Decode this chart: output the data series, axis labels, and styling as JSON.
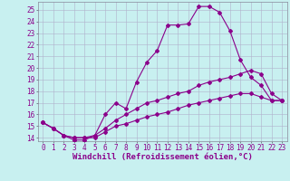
{
  "xlabel": "Windchill (Refroidissement éolien,°C)",
  "bg_color": "#c8f0f0",
  "line_color": "#8b008b",
  "grid_color": "#b0b0cc",
  "xlim": [
    -0.5,
    23.5
  ],
  "ylim": [
    13.7,
    25.7
  ],
  "yticks": [
    14,
    15,
    16,
    17,
    18,
    19,
    20,
    21,
    22,
    23,
    24,
    25
  ],
  "xticks": [
    0,
    1,
    2,
    3,
    4,
    5,
    6,
    7,
    8,
    9,
    10,
    11,
    12,
    13,
    14,
    15,
    16,
    17,
    18,
    19,
    20,
    21,
    22,
    23
  ],
  "curve1_x": [
    0,
    1,
    2,
    3,
    4,
    5,
    6,
    7,
    8,
    9,
    10,
    11,
    12,
    13,
    14,
    15,
    16,
    17,
    18,
    19,
    20,
    21,
    22,
    23
  ],
  "curve1_y": [
    15.3,
    14.8,
    14.2,
    13.8,
    13.8,
    14.2,
    16.0,
    17.0,
    16.5,
    18.8,
    20.5,
    21.5,
    23.7,
    23.7,
    23.8,
    25.3,
    25.3,
    24.8,
    23.2,
    20.7,
    19.2,
    18.5,
    17.2,
    17.2
  ],
  "curve2_x": [
    0,
    1,
    2,
    3,
    4,
    5,
    6,
    7,
    8,
    9,
    10,
    11,
    12,
    13,
    14,
    15,
    16,
    17,
    18,
    19,
    20,
    21,
    22,
    23
  ],
  "curve2_y": [
    15.3,
    14.8,
    14.2,
    14.0,
    14.0,
    14.2,
    14.8,
    15.5,
    16.0,
    16.5,
    17.0,
    17.2,
    17.5,
    17.8,
    18.0,
    18.5,
    18.8,
    19.0,
    19.2,
    19.5,
    19.8,
    19.5,
    17.8,
    17.2
  ],
  "curve3_x": [
    0,
    1,
    2,
    3,
    4,
    5,
    6,
    7,
    8,
    9,
    10,
    11,
    12,
    13,
    14,
    15,
    16,
    17,
    18,
    19,
    20,
    21,
    22,
    23
  ],
  "curve3_y": [
    15.3,
    14.8,
    14.2,
    14.0,
    14.0,
    14.0,
    14.5,
    15.0,
    15.2,
    15.5,
    15.8,
    16.0,
    16.2,
    16.5,
    16.8,
    17.0,
    17.2,
    17.4,
    17.6,
    17.8,
    17.8,
    17.5,
    17.2,
    17.2
  ],
  "marker": "D",
  "markersize": 2.0,
  "linewidth": 0.8,
  "xlabel_fontsize": 6.5,
  "tick_fontsize": 5.5
}
